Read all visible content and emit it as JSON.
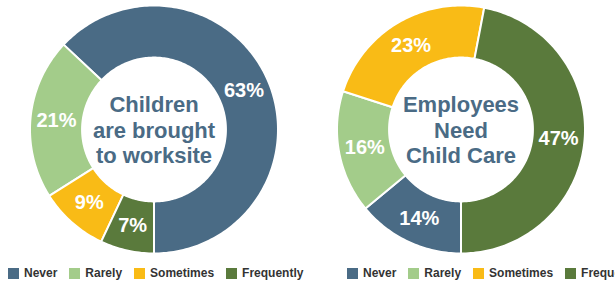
{
  "chart_data": [
    {
      "type": "pie",
      "title": "Children\nare brought\nto worksite",
      "categories": [
        "Never",
        "Rarely",
        "Sometimes",
        "Frequently"
      ],
      "values": [
        63,
        21,
        9,
        7
      ],
      "value_labels": [
        "63%",
        "21%",
        "9%",
        "7%"
      ],
      "colors": [
        "#4a6b85",
        "#a3cc8a",
        "#f9bb16",
        "#5a7a3c"
      ],
      "data_labels": true,
      "legend": "bottom"
    },
    {
      "type": "pie",
      "title": "Employees\nNeed\nChild Care",
      "categories": [
        "Never",
        "Rarely",
        "Sometimes",
        "Frequently"
      ],
      "values": [
        14,
        16,
        23,
        47
      ],
      "value_labels": [
        "14%",
        "16%",
        "23%",
        "47%"
      ],
      "colors": [
        "#4a6b85",
        "#a3cc8a",
        "#f9bb16",
        "#5a7a3c"
      ],
      "data_labels": true,
      "legend": "bottom"
    }
  ]
}
